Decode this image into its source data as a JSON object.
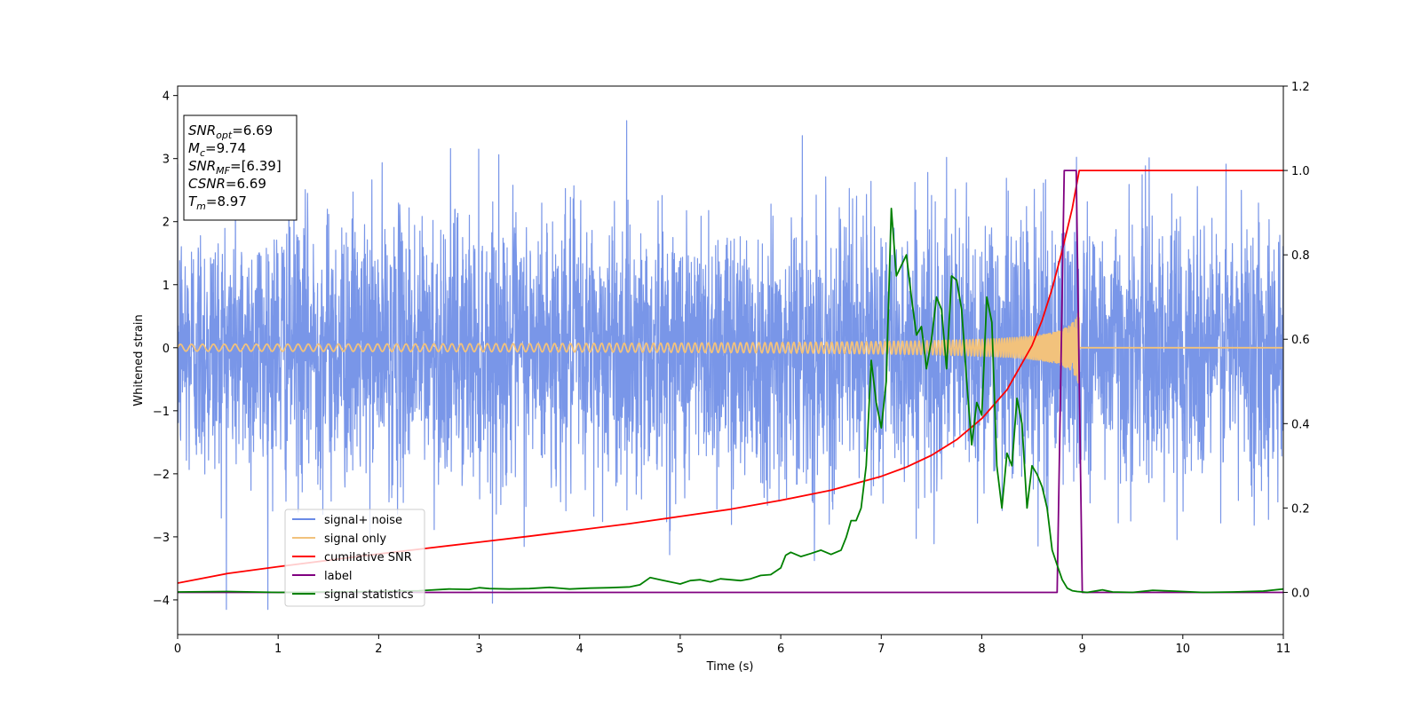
{
  "chart_data": {
    "type": "line",
    "xlabel": "Time (s)",
    "ylabel": "Whitened strain",
    "xlim": [
      0,
      11
    ],
    "ylim": [
      -4.55,
      4.15
    ],
    "y2lim": [
      -0.1,
      1.2
    ],
    "x_ticks": [
      0,
      1,
      2,
      3,
      4,
      5,
      6,
      7,
      8,
      9,
      10,
      11
    ],
    "y_ticks": [
      4,
      3,
      2,
      1,
      0,
      -1,
      -2,
      -3,
      -4
    ],
    "y_tick_labels": [
      "4",
      "3",
      "2",
      "1",
      "0",
      "−1",
      "−2",
      "−3",
      "−4"
    ],
    "y2_ticks": [
      1.2,
      1.0,
      0.8,
      0.6,
      0.4,
      0.2,
      0.0
    ],
    "y2_tick_labels": [
      "1.2",
      "1.0",
      "0.8",
      "0.6",
      "0.4",
      "0.2",
      "0.0"
    ],
    "grid": false,
    "legend_position": "lower-left",
    "annotation": {
      "lines": [
        {
          "base": "SNR",
          "sub": "opt",
          "rest": "=6.69"
        },
        {
          "base": "M",
          "sub": "c",
          "rest": "=9.74"
        },
        {
          "base": "SNR",
          "sub": "MF",
          "rest": "=[6.39]"
        },
        {
          "base": "CSNR",
          "sub": "",
          "rest": "=6.69"
        },
        {
          "base": "T",
          "sub": "m",
          "rest": "=8.97"
        }
      ]
    },
    "series": [
      {
        "name": "signal+ noise",
        "color": "#6a8be6",
        "axis": "left",
        "kind": "noise",
        "std": 1.05,
        "peak_min": -4.15,
        "peak_max": 3.75
      },
      {
        "name": "signal only",
        "color": "#f2c27c",
        "axis": "left",
        "kind": "chirp",
        "end": 8.97,
        "max_amplitude": 0.62
      },
      {
        "name": "cumilative SNR",
        "color": "#ff0000",
        "axis": "right",
        "x": [
          0,
          0.5,
          1,
          1.5,
          2,
          2.5,
          3,
          3.5,
          4,
          4.5,
          5,
          5.5,
          6,
          6.5,
          7,
          7.25,
          7.5,
          7.75,
          8,
          8.25,
          8.5,
          8.6,
          8.7,
          8.8,
          8.9,
          8.97,
          9.0,
          11
        ],
        "y": [
          0.022,
          0.045,
          0.061,
          0.076,
          0.091,
          0.105,
          0.119,
          0.133,
          0.148,
          0.163,
          0.18,
          0.197,
          0.218,
          0.242,
          0.275,
          0.297,
          0.325,
          0.362,
          0.412,
          0.48,
          0.585,
          0.645,
          0.72,
          0.81,
          0.91,
          1.0,
          1.0,
          1.0
        ]
      },
      {
        "name": "label",
        "color": "#800080",
        "axis": "right",
        "x": [
          0,
          8.75,
          8.82,
          8.94,
          9.0,
          11
        ],
        "y": [
          0,
          0,
          1,
          1,
          0,
          0
        ]
      },
      {
        "name": "signal statistics",
        "color": "#008000",
        "axis": "right",
        "x": [
          0,
          0.5,
          1,
          1.5,
          2,
          2.4,
          2.7,
          2.9,
          3.0,
          3.1,
          3.3,
          3.5,
          3.7,
          3.9,
          4.1,
          4.3,
          4.5,
          4.6,
          4.7,
          4.8,
          4.9,
          5.0,
          5.1,
          5.2,
          5.3,
          5.4,
          5.5,
          5.6,
          5.7,
          5.8,
          5.9,
          6.0,
          6.05,
          6.1,
          6.2,
          6.3,
          6.4,
          6.5,
          6.6,
          6.65,
          6.7,
          6.75,
          6.8,
          6.85,
          6.9,
          6.95,
          7.0,
          7.05,
          7.1,
          7.15,
          7.25,
          7.3,
          7.35,
          7.4,
          7.45,
          7.5,
          7.55,
          7.6,
          7.65,
          7.7,
          7.75,
          7.8,
          7.85,
          7.9,
          7.95,
          8.0,
          8.05,
          8.1,
          8.15,
          8.2,
          8.25,
          8.3,
          8.35,
          8.4,
          8.45,
          8.5,
          8.55,
          8.6,
          8.65,
          8.7,
          8.75,
          8.8,
          8.85,
          8.9,
          8.95,
          9.0,
          9.05,
          9.1,
          9.2,
          9.3,
          9.5,
          9.7,
          9.9,
          10.2,
          10.5,
          10.8,
          11
        ],
        "y": [
          0.001,
          0.002,
          0.0,
          0.001,
          0.002,
          0.004,
          0.008,
          0.007,
          0.011,
          0.009,
          0.008,
          0.009,
          0.012,
          0.008,
          0.01,
          0.011,
          0.013,
          0.018,
          0.035,
          0.03,
          0.025,
          0.02,
          0.028,
          0.03,
          0.025,
          0.032,
          0.03,
          0.028,
          0.032,
          0.04,
          0.042,
          0.058,
          0.088,
          0.095,
          0.085,
          0.092,
          0.1,
          0.09,
          0.1,
          0.13,
          0.17,
          0.17,
          0.2,
          0.3,
          0.55,
          0.45,
          0.39,
          0.5,
          0.91,
          0.75,
          0.8,
          0.7,
          0.61,
          0.63,
          0.53,
          0.6,
          0.7,
          0.67,
          0.53,
          0.75,
          0.74,
          0.67,
          0.5,
          0.35,
          0.45,
          0.42,
          0.7,
          0.64,
          0.3,
          0.2,
          0.33,
          0.3,
          0.46,
          0.4,
          0.2,
          0.3,
          0.28,
          0.25,
          0.2,
          0.1,
          0.065,
          0.03,
          0.01,
          0.004,
          0.002,
          0.001,
          0.0,
          0.002,
          0.006,
          0.001,
          0.0,
          0.005,
          0.003,
          0.0,
          0.001,
          0.003,
          0.008
        ]
      }
    ]
  }
}
